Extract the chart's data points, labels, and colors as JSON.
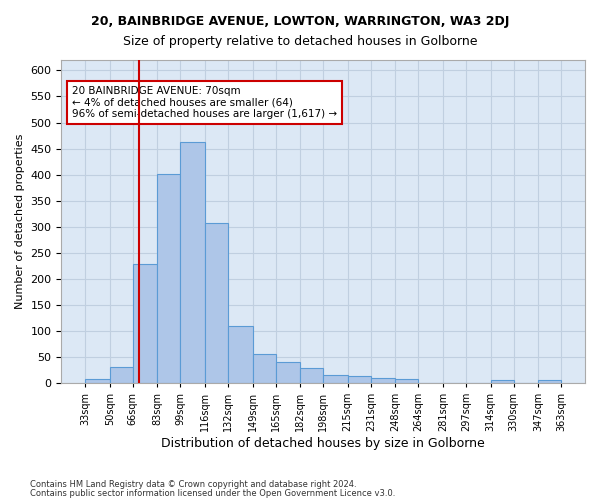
{
  "title1": "20, BAINBRIDGE AVENUE, LOWTON, WARRINGTON, WA3 2DJ",
  "title2": "Size of property relative to detached houses in Golborne",
  "xlabel": "Distribution of detached houses by size in Golborne",
  "ylabel": "Number of detached properties",
  "footer1": "Contains HM Land Registry data © Crown copyright and database right 2024.",
  "footer2": "Contains public sector information licensed under the Open Government Licence v3.0.",
  "annotation_title": "20 BAINBRIDGE AVENUE: 70sqm",
  "annotation_line1": "← 4% of detached houses are smaller (64)",
  "annotation_line2": "96% of semi-detached houses are larger (1,617) →",
  "property_size": 70,
  "bar_edges": [
    33,
    50,
    66,
    83,
    99,
    116,
    132,
    149,
    165,
    182,
    198,
    215,
    231,
    248,
    264,
    281,
    297,
    314,
    330,
    347,
    363
  ],
  "bar_heights": [
    7,
    30,
    228,
    402,
    463,
    307,
    109,
    55,
    41,
    28,
    15,
    13,
    10,
    7,
    0,
    0,
    0,
    5,
    0,
    5
  ],
  "bar_color": "#aec6e8",
  "bar_edge_color": "#5b9bd5",
  "highlight_line_color": "#cc0000",
  "annotation_box_edge": "#cc0000",
  "annotation_box_face": "#ffffff",
  "background_color": "#ffffff",
  "grid_color": "#c0cfe0",
  "ylim": [
    0,
    620
  ],
  "yticks": [
    0,
    50,
    100,
    150,
    200,
    250,
    300,
    350,
    400,
    450,
    500,
    550,
    600
  ]
}
